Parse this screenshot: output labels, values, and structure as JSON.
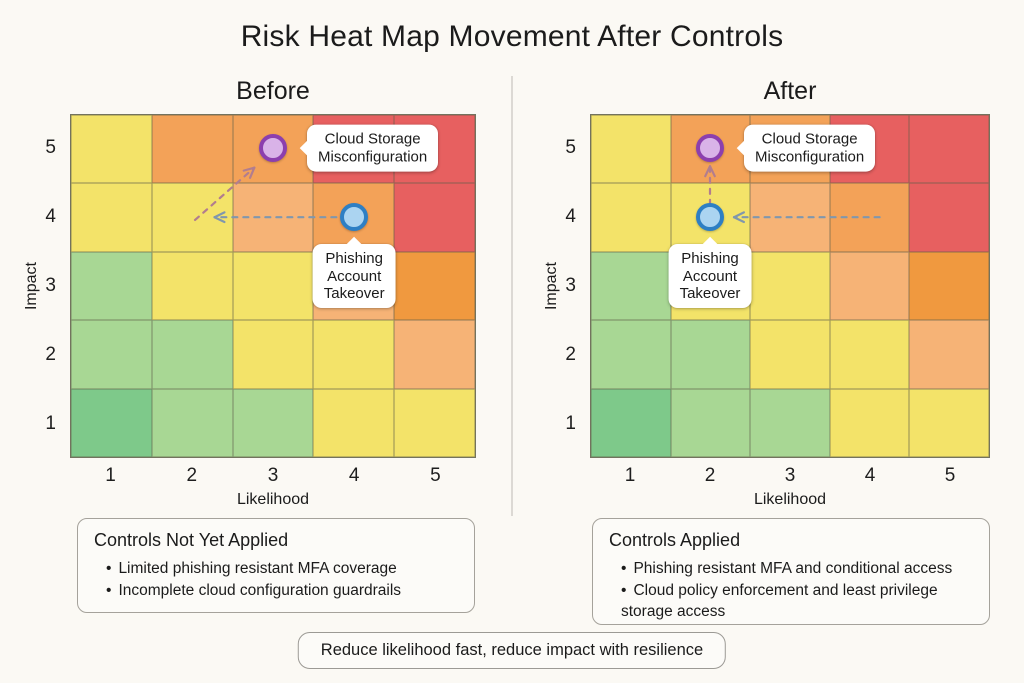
{
  "title": "Risk Heat Map Movement After Controls",
  "palette": {
    "yellow": "#f3e369",
    "green": "#a8d794",
    "dark_green": "#7ec98a",
    "peach": "#f6b376",
    "orange": "#f3a258",
    "deep_orange": "#f0993f",
    "red": "#e76060"
  },
  "marker_styles": {
    "purple": {
      "fill": "#d9b3e8",
      "border": "#8c3fae"
    },
    "blue": {
      "fill": "#abd4f1",
      "border": "#2e7fc4"
    }
  },
  "arrow_colors": {
    "mauve": "#b27d8e",
    "slate": "#8097ad"
  },
  "chart_data": [
    {
      "type": "heatmap",
      "title": "Before",
      "xlabel": "Likelihood",
      "ylabel": "Impact",
      "x_ticks": [
        "1",
        "2",
        "3",
        "4",
        "5"
      ],
      "y_ticks": [
        "5",
        "4",
        "3",
        "2",
        "1"
      ],
      "axis_range": {
        "likelihood": [
          1,
          5
        ],
        "impact": [
          1,
          5
        ]
      },
      "cell_colors": [
        [
          "yellow",
          "orange",
          "orange",
          "red",
          "red"
        ],
        [
          "yellow",
          "yellow",
          "peach",
          "orange",
          "red"
        ],
        [
          "green",
          "yellow",
          "yellow",
          "peach",
          "deep_orange"
        ],
        [
          "green",
          "green",
          "yellow",
          "yellow",
          "peach"
        ],
        [
          "dark_green",
          "green",
          "green",
          "yellow",
          "yellow"
        ]
      ],
      "points": [
        {
          "label": "Cloud Storage Misconfiguration",
          "label_lines": [
            "Cloud Storage",
            "Misconfiguration"
          ],
          "likelihood": 3,
          "impact": 5,
          "marker": "purple",
          "callout": "right"
        },
        {
          "label": "Phishing Account Takeover",
          "label_lines": [
            "Phishing",
            "Account",
            "Takeover"
          ],
          "likelihood": 4,
          "impact": 4,
          "marker": "blue",
          "callout": "below"
        }
      ],
      "arrows": [
        {
          "from": {
            "likelihood": 2.04,
            "impact": 3.96
          },
          "to": {
            "likelihood": 2.77,
            "impact": 4.72
          },
          "color": "mauve"
        },
        {
          "from": {
            "likelihood": 3.78,
            "impact": 4.0
          },
          "to": {
            "likelihood": 2.28,
            "impact": 4.0
          },
          "color": "slate"
        }
      ]
    },
    {
      "type": "heatmap",
      "title": "After",
      "xlabel": "Likelihood",
      "ylabel": "Impact",
      "x_ticks": [
        "1",
        "2",
        "3",
        "4",
        "5"
      ],
      "y_ticks": [
        "5",
        "4",
        "3",
        "2",
        "1"
      ],
      "axis_range": {
        "likelihood": [
          1,
          5
        ],
        "impact": [
          1,
          5
        ]
      },
      "cell_colors": [
        [
          "yellow",
          "orange",
          "orange",
          "red",
          "red"
        ],
        [
          "yellow",
          "yellow",
          "peach",
          "orange",
          "red"
        ],
        [
          "green",
          "yellow",
          "yellow",
          "peach",
          "deep_orange"
        ],
        [
          "green",
          "green",
          "yellow",
          "yellow",
          "peach"
        ],
        [
          "dark_green",
          "green",
          "green",
          "yellow",
          "yellow"
        ]
      ],
      "points": [
        {
          "label": "Cloud Storage Misconfiguration",
          "label_lines": [
            "Cloud Storage",
            "Misconfiguration"
          ],
          "likelihood": 2,
          "impact": 5,
          "marker": "purple",
          "callout": "right"
        },
        {
          "label": "Phishing Account Takeover",
          "label_lines": [
            "Phishing",
            "Account",
            "Takeover"
          ],
          "likelihood": 2,
          "impact": 4,
          "marker": "blue",
          "callout": "below"
        }
      ],
      "arrows": [
        {
          "from": {
            "likelihood": 2.0,
            "impact": 4.18
          },
          "to": {
            "likelihood": 2.0,
            "impact": 4.74
          },
          "color": "mauve"
        },
        {
          "from": {
            "likelihood": 4.12,
            "impact": 4.0
          },
          "to": {
            "likelihood": 2.3,
            "impact": 4.0
          },
          "color": "slate"
        }
      ]
    }
  ],
  "boxes": {
    "before": {
      "title": "Controls Not Yet Applied",
      "bullets": [
        "Limited phishing resistant MFA coverage",
        "Incomplete cloud configuration guardrails"
      ]
    },
    "after": {
      "title": "Controls Applied",
      "bullets": [
        "Phishing resistant MFA and conditional access",
        "Cloud policy enforcement and least privilege storage access"
      ]
    }
  },
  "footer_note": "Reduce likelihood fast, reduce impact with resilience"
}
